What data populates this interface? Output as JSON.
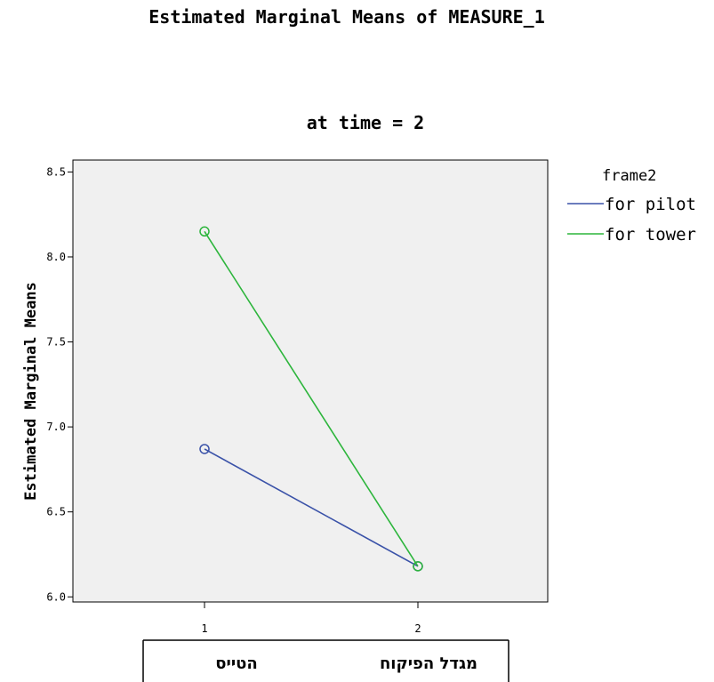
{
  "chart_data": {
    "type": "line",
    "title": "Estimated Marginal Means of MEASURE_1",
    "subtitle": "at time = 2",
    "ylabel": "Estimated Marginal Means",
    "ylim": [
      5.97,
      8.57
    ],
    "yticks": [
      "6.0",
      "6.5",
      "7.0",
      "7.5",
      "8.0",
      "8.5"
    ],
    "x": [
      "1",
      "2"
    ],
    "category_labels": [
      "הטייס",
      "מגדל הפיקוח"
    ],
    "legend_title": "frame2",
    "legend_position": "right",
    "grid": false,
    "series": [
      {
        "name": "for pilot",
        "color": "#3a52a8",
        "values": [
          6.87,
          6.18
        ]
      },
      {
        "name": "for tower",
        "color": "#2db53c",
        "values": [
          8.15,
          6.18
        ]
      }
    ]
  }
}
